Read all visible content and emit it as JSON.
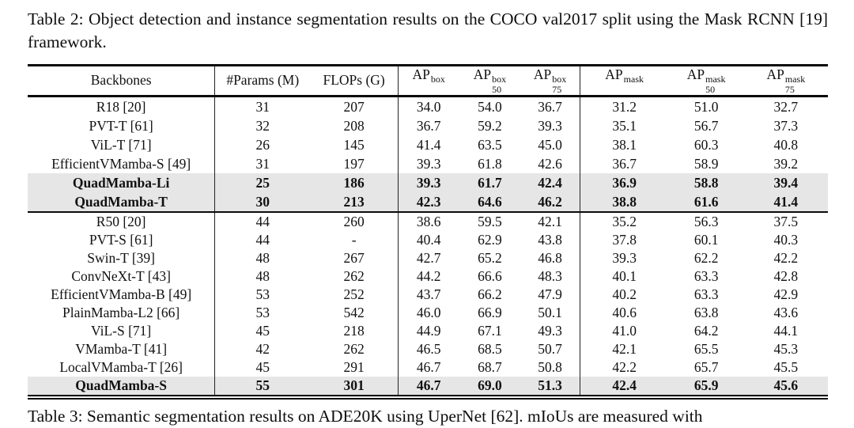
{
  "caption": {
    "text": "Table 2: Object detection and instance segmentation results on the COCO val2017 split using the Mask RCNN [19] framework."
  },
  "table": {
    "columns": [
      {
        "label": "Backbones"
      },
      {
        "label": "#Params (M)"
      },
      {
        "label": "FLOPs (G)"
      },
      {
        "label": "AP",
        "sup": "box",
        "sub": ""
      },
      {
        "label": "AP",
        "sup": "box",
        "sub": "50"
      },
      {
        "label": "AP",
        "sup": "box",
        "sub": "75"
      },
      {
        "label": "AP",
        "sup": "mask",
        "sub": ""
      },
      {
        "label": "AP",
        "sup": "mask",
        "sub": "50"
      },
      {
        "label": "AP",
        "sup": "mask",
        "sub": "75"
      }
    ],
    "groups": [
      {
        "rows": [
          {
            "backbone": "R18 [20]",
            "values": [
              "31",
              "207",
              "34.0",
              "54.0",
              "36.7",
              "31.2",
              "51.0",
              "32.7"
            ],
            "highlight": false
          },
          {
            "backbone": "PVT-T [61]",
            "values": [
              "32",
              "208",
              "36.7",
              "59.2",
              "39.3",
              "35.1",
              "56.7",
              "37.3"
            ],
            "highlight": false
          },
          {
            "backbone": "ViL-T [71]",
            "values": [
              "26",
              "145",
              "41.4",
              "63.5",
              "45.0",
              "38.1",
              "60.3",
              "40.8"
            ],
            "highlight": false
          },
          {
            "backbone": "EfficientVMamba-S [49]",
            "values": [
              "31",
              "197",
              "39.3",
              "61.8",
              "42.6",
              "36.7",
              "58.9",
              "39.2"
            ],
            "highlight": false
          },
          {
            "backbone": "QuadMamba-Li",
            "values": [
              "25",
              "186",
              "39.3",
              "61.7",
              "42.4",
              "36.9",
              "58.8",
              "39.4"
            ],
            "highlight": true
          },
          {
            "backbone": "QuadMamba-T",
            "values": [
              "30",
              "213",
              "42.3",
              "64.6",
              "46.2",
              "38.8",
              "61.6",
              "41.4"
            ],
            "highlight": true
          }
        ]
      },
      {
        "rows": [
          {
            "backbone": "R50 [20]",
            "values": [
              "44",
              "260",
              "38.6",
              "59.5",
              "42.1",
              "35.2",
              "56.3",
              "37.5"
            ],
            "highlight": false
          },
          {
            "backbone": "PVT-S [61]",
            "values": [
              "44",
              "-",
              "40.4",
              "62.9",
              "43.8",
              "37.8",
              "60.1",
              "40.3"
            ],
            "highlight": false
          },
          {
            "backbone": "Swin-T [39]",
            "values": [
              "48",
              "267",
              "42.7",
              "65.2",
              "46.8",
              "39.3",
              "62.2",
              "42.2"
            ],
            "highlight": false
          },
          {
            "backbone": "ConvNeXt-T [43]",
            "values": [
              "48",
              "262",
              "44.2",
              "66.6",
              "48.3",
              "40.1",
              "63.3",
              "42.8"
            ],
            "highlight": false
          },
          {
            "backbone": "EfficientVMamba-B [49]",
            "values": [
              "53",
              "252",
              "43.7",
              "66.2",
              "47.9",
              "40.2",
              "63.3",
              "42.9"
            ],
            "highlight": false
          },
          {
            "backbone": "PlainMamba-L2 [66]",
            "values": [
              "53",
              "542",
              "46.0",
              "66.9",
              "50.1",
              "40.6",
              "63.8",
              "43.6"
            ],
            "highlight": false
          },
          {
            "backbone": "ViL-S [71]",
            "values": [
              "45",
              "218",
              "44.9",
              "67.1",
              "49.3",
              "41.0",
              "64.2",
              "44.1"
            ],
            "highlight": false
          },
          {
            "backbone": "VMamba-T [41]",
            "values": [
              "42",
              "262",
              "46.5",
              "68.5",
              "50.7",
              "42.1",
              "65.5",
              "45.3"
            ],
            "highlight": false
          },
          {
            "backbone": "LocalVMamba-T [26]",
            "values": [
              "45",
              "291",
              "46.7",
              "68.7",
              "50.8",
              "42.2",
              "65.7",
              "45.5"
            ],
            "highlight": false
          },
          {
            "backbone": "QuadMamba-S",
            "values": [
              "55",
              "301",
              "46.7",
              "69.0",
              "51.3",
              "42.4",
              "65.9",
              "45.6"
            ],
            "highlight": true
          }
        ]
      }
    ]
  },
  "next_caption": {
    "text": "Table 3: Semantic segmentation results on ADE20K using UperNet [62]. mIoUs are measured with"
  }
}
